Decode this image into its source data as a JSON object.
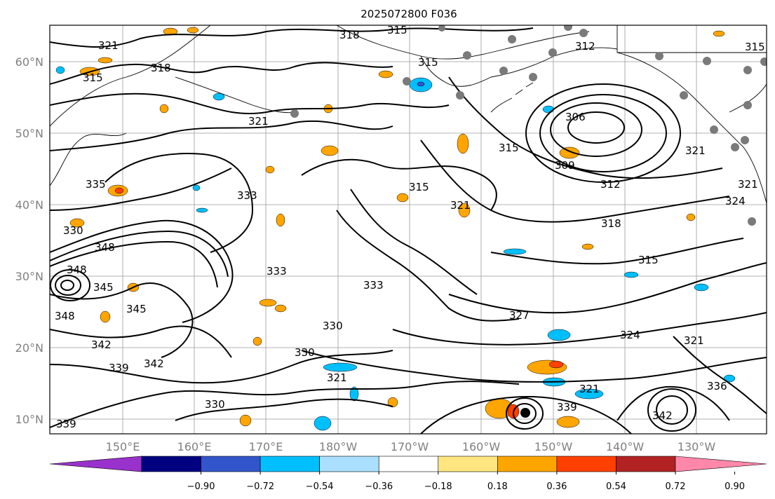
{
  "title": "2025072800 F036",
  "map": {
    "lat_labels": [
      "10°N",
      "20°N",
      "30°N",
      "40°N",
      "50°N",
      "60°N"
    ],
    "lon_labels": [
      "150°E",
      "160°E",
      "170°E",
      "180°W",
      "170°W",
      "160°W",
      "150°W",
      "140°W",
      "130°W"
    ],
    "contour_labels": [
      "321",
      "318",
      "315",
      "315",
      "318",
      "315",
      "312",
      "306",
      "309",
      "315",
      "321",
      "312",
      "318",
      "321",
      "315",
      "321",
      "333",
      "335",
      "333",
      "330",
      "348",
      "348",
      "345",
      "345",
      "348",
      "342",
      "342",
      "339",
      "339",
      "330",
      "330",
      "321",
      "330",
      "333",
      "327",
      "324",
      "321",
      "315",
      "321",
      "339",
      "336",
      "342",
      "321",
      "324",
      "315"
    ],
    "land_color": "#000000",
    "grid_color": "#9a9a9a"
  },
  "colorbar": {
    "ticks": [
      "−0.90",
      "−0.72",
      "−0.54",
      "−0.36",
      "−0.18",
      "0.18",
      "0.36",
      "0.54",
      "0.72",
      "0.90"
    ],
    "colors": [
      "#9932cc",
      "#000080",
      "#3355cc",
      "#00bfff",
      "#aadfff",
      "#ffffff",
      "#ffe680",
      "#ffa500",
      "#ff4000",
      "#b22222",
      "#ff88aa"
    ]
  }
}
